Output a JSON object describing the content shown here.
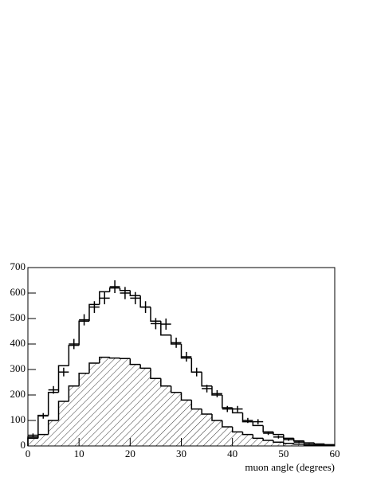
{
  "chart_data": {
    "type": "histogram",
    "xlabel": "muon angle (degrees)",
    "bins": [
      0,
      2,
      4,
      6,
      8,
      10,
      12,
      14,
      16,
      18,
      20,
      22,
      24,
      26,
      28,
      30,
      32,
      34,
      36,
      38,
      40,
      42,
      44,
      46,
      48,
      50,
      52,
      54,
      56,
      58,
      60
    ],
    "series": [
      {
        "color": "#000000",
        "hatch": false,
        "values": [
          35,
          120,
          210,
          315,
          395,
          490,
          555,
          605,
          620,
          610,
          590,
          545,
          490,
          435,
          400,
          345,
          290,
          235,
          200,
          150,
          130,
          95,
          80,
          55,
          45,
          30,
          20,
          12,
          8,
          5
        ]
      },
      {
        "color": "#000000",
        "hatch": true,
        "values": [
          30,
          45,
          100,
          175,
          235,
          285,
          325,
          348,
          345,
          343,
          320,
          305,
          265,
          235,
          210,
          180,
          145,
          125,
          100,
          75,
          55,
          45,
          30,
          22,
          15,
          10,
          7,
          4,
          2,
          1
        ]
      }
    ],
    "points": {
      "color": "#000000",
      "x": [
        1,
        3,
        5,
        7,
        9,
        11,
        13,
        15,
        17,
        19,
        21,
        23,
        25,
        27,
        29,
        31,
        33,
        35,
        37,
        39,
        41,
        43,
        45,
        47,
        49,
        51,
        53,
        55,
        57,
        59
      ],
      "values": [
        42,
        118,
        220,
        290,
        400,
        495,
        545,
        580,
        625,
        600,
        580,
        545,
        480,
        478,
        405,
        350,
        290,
        225,
        205,
        145,
        145,
        100,
        95,
        50,
        35,
        25,
        15,
        10,
        6,
        3
      ],
      "errors": [
        7,
        11,
        15,
        17,
        20,
        22,
        23,
        24,
        25,
        24,
        24,
        23,
        22,
        22,
        20,
        19,
        17,
        15,
        14,
        12,
        12,
        10,
        10,
        7,
        6,
        5,
        4,
        3,
        2,
        2
      ]
    },
    "xlim": [
      0,
      60
    ],
    "xticks": [
      0,
      10,
      20,
      30,
      40,
      50,
      60
    ],
    "ylim": [
      0,
      700
    ],
    "yticks": [
      0,
      100,
      200,
      300,
      400,
      500,
      600,
      700
    ]
  }
}
